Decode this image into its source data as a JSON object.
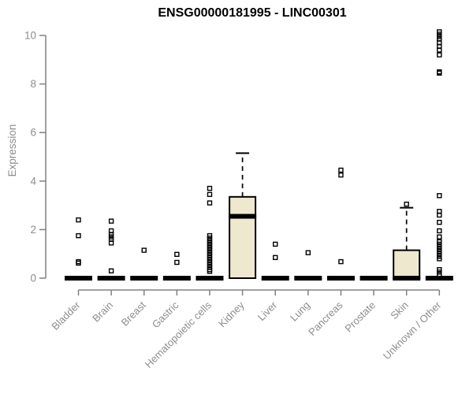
{
  "chart_data": {
    "type": "boxplot",
    "title": "ENSG00000181995 - LINC00301",
    "ylabel": "Expression",
    "xlabel": "",
    "ylim": [
      0,
      10
    ],
    "yticks": [
      0,
      2,
      4,
      6,
      8,
      10
    ],
    "grid": false,
    "legend": "none",
    "colors": {
      "box_fill": "#EDE8CE",
      "box_stroke": "#000000",
      "axis": "#818181",
      "tick_text": "#8d8d8d",
      "outlier": "#000000"
    },
    "categories": [
      "Bladder",
      "Brain",
      "Breast",
      "Gastric",
      "Hematopoietic cells",
      "Kidney",
      "Liver",
      "Lung",
      "Pancreas",
      "Prostate",
      "Skin",
      "Unknown / Other"
    ],
    "boxes": [
      {
        "category": "Bladder",
        "q1": 0,
        "median": 0,
        "q3": 0,
        "whisker_low": 0,
        "whisker_high": 0,
        "outliers": [
          2.4,
          1.75,
          0.68,
          0.62
        ]
      },
      {
        "category": "Brain",
        "q1": 0,
        "median": 0,
        "q3": 0,
        "whisker_low": 0,
        "whisker_high": 0,
        "outliers": [
          2.35,
          1.95,
          1.8,
          1.7,
          1.6,
          1.45,
          0.3
        ]
      },
      {
        "category": "Breast",
        "q1": 0,
        "median": 0,
        "q3": 0,
        "whisker_low": 0,
        "whisker_high": 0,
        "outliers": [
          1.15
        ]
      },
      {
        "category": "Gastric",
        "q1": 0,
        "median": 0,
        "q3": 0,
        "whisker_low": 0,
        "whisker_high": 0,
        "outliers": [
          0.98,
          0.65
        ]
      },
      {
        "category": "Hematopoietic cells",
        "q1": 0,
        "median": 0,
        "q3": 0,
        "whisker_low": 0,
        "whisker_high": 0,
        "outliers": [
          3.7,
          3.45,
          3.1,
          1.75,
          1.65,
          1.55,
          1.45,
          1.35,
          1.25,
          1.15,
          1.05,
          0.95,
          0.85,
          0.75,
          0.65,
          0.55,
          0.45,
          0.35,
          0.28
        ]
      },
      {
        "category": "Kidney",
        "q1": 0,
        "median": 2.55,
        "q3": 3.35,
        "whisker_low": 0,
        "whisker_high": 5.15,
        "outliers": []
      },
      {
        "category": "Liver",
        "q1": 0,
        "median": 0,
        "q3": 0,
        "whisker_low": 0,
        "whisker_high": 0,
        "outliers": [
          1.4,
          0.85
        ]
      },
      {
        "category": "Lung",
        "q1": 0,
        "median": 0,
        "q3": 0,
        "whisker_low": 0,
        "whisker_high": 0,
        "outliers": [
          1.05
        ]
      },
      {
        "category": "Pancreas",
        "q1": 0,
        "median": 0,
        "q3": 0,
        "whisker_low": 0,
        "whisker_high": 0,
        "outliers": [
          4.45,
          4.25,
          0.68
        ]
      },
      {
        "category": "Prostate",
        "q1": 0,
        "median": 0,
        "q3": 0,
        "whisker_low": 0,
        "whisker_high": 0,
        "outliers": []
      },
      {
        "category": "Skin",
        "q1": 0,
        "median": 0,
        "q3": 1.15,
        "whisker_low": 0,
        "whisker_high": 2.9,
        "outliers": [
          3.05
        ]
      },
      {
        "category": "Unknown / Other",
        "q1": 0,
        "median": 0,
        "q3": 0,
        "whisker_low": 0,
        "whisker_high": 0,
        "outliers": [
          10.15,
          10.05,
          9.95,
          9.85,
          9.7,
          9.55,
          9.4,
          9.2,
          8.5,
          8.45,
          3.4,
          2.75,
          2.6,
          2.3,
          1.95,
          1.7,
          1.5,
          1.4,
          1.3,
          1.2,
          1.1,
          1.0,
          0.9,
          0.8,
          0.35,
          0.25,
          0.15
        ]
      }
    ]
  }
}
